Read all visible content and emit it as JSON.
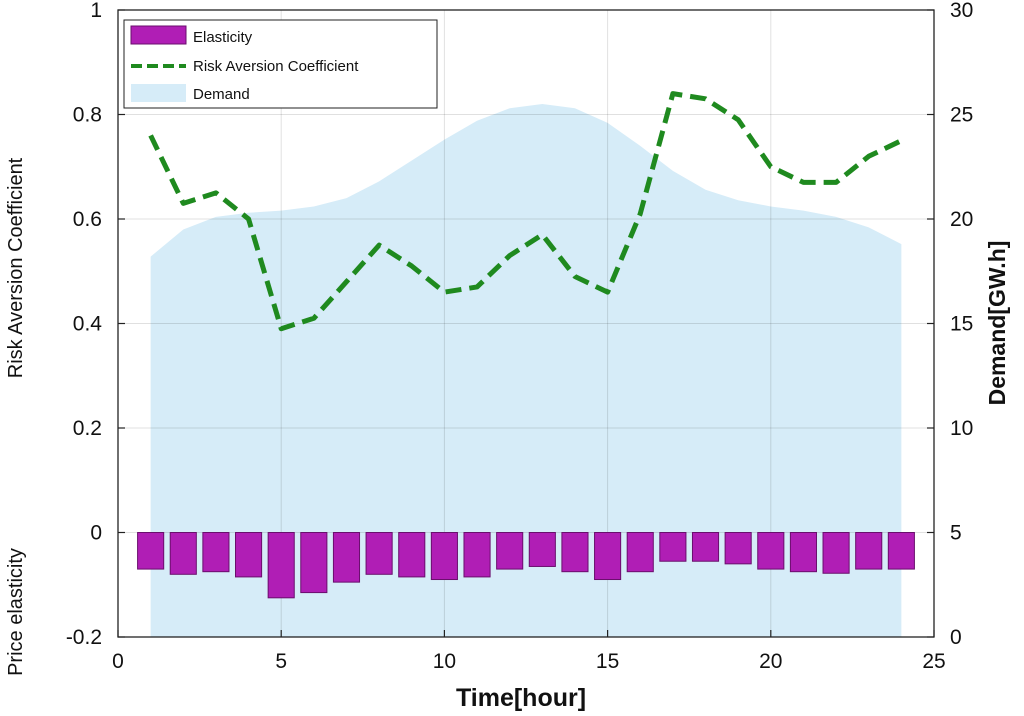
{
  "chart_data": {
    "type": "bar+line+area",
    "xlabel": "Time[hour]",
    "ylabel_left_upper": "Risk Aversion Coefficient",
    "ylabel_left_lower": "Price elasticity",
    "ylabel_right": "Demand[GW.h]",
    "xlim": [
      0,
      25
    ],
    "ylim_left": [
      -0.2,
      1
    ],
    "ylim_right": [
      0,
      30
    ],
    "x_ticks": [
      "0",
      "5",
      "10",
      "15",
      "20",
      "25"
    ],
    "y_left_ticks": [
      "-0.2",
      "0",
      "0.2",
      "0.4",
      "0.6",
      "0.8",
      "1"
    ],
    "y_right_ticks": [
      "0",
      "5",
      "10",
      "15",
      "20",
      "25",
      "30"
    ],
    "grid": true,
    "legend_position": "top-left",
    "hours": [
      1,
      2,
      3,
      4,
      5,
      6,
      7,
      8,
      9,
      10,
      11,
      12,
      13,
      14,
      15,
      16,
      17,
      18,
      19,
      20,
      21,
      22,
      23,
      24
    ],
    "series": [
      {
        "name": "Elasticity",
        "kind": "bar",
        "axis": "left",
        "color": "#b01eb5",
        "values": [
          -0.07,
          -0.08,
          -0.075,
          -0.085,
          -0.125,
          -0.115,
          -0.095,
          -0.08,
          -0.085,
          -0.09,
          -0.085,
          -0.07,
          -0.065,
          -0.075,
          -0.09,
          -0.075,
          -0.055,
          -0.055,
          -0.06,
          -0.07,
          -0.075,
          -0.078,
          -0.07,
          -0.07
        ]
      },
      {
        "name": "Risk Aversion Coefficient",
        "kind": "line",
        "axis": "left",
        "color": "#1f8a1f",
        "values": [
          0.76,
          0.63,
          0.65,
          0.6,
          0.39,
          0.41,
          0.48,
          0.55,
          0.51,
          0.46,
          0.47,
          0.53,
          0.57,
          0.49,
          0.46,
          0.61,
          0.84,
          0.83,
          0.79,
          0.7,
          0.67,
          0.67,
          0.72,
          0.75
        ]
      },
      {
        "name": "Demand",
        "kind": "area",
        "axis": "right",
        "color": "#d6ecf8",
        "values": [
          18.2,
          19.5,
          20.1,
          20.3,
          20.4,
          20.6,
          21.0,
          21.8,
          22.8,
          23.8,
          24.7,
          25.3,
          25.5,
          25.3,
          24.6,
          23.5,
          22.3,
          21.4,
          20.9,
          20.6,
          20.4,
          20.1,
          19.6,
          18.8
        ]
      }
    ]
  }
}
